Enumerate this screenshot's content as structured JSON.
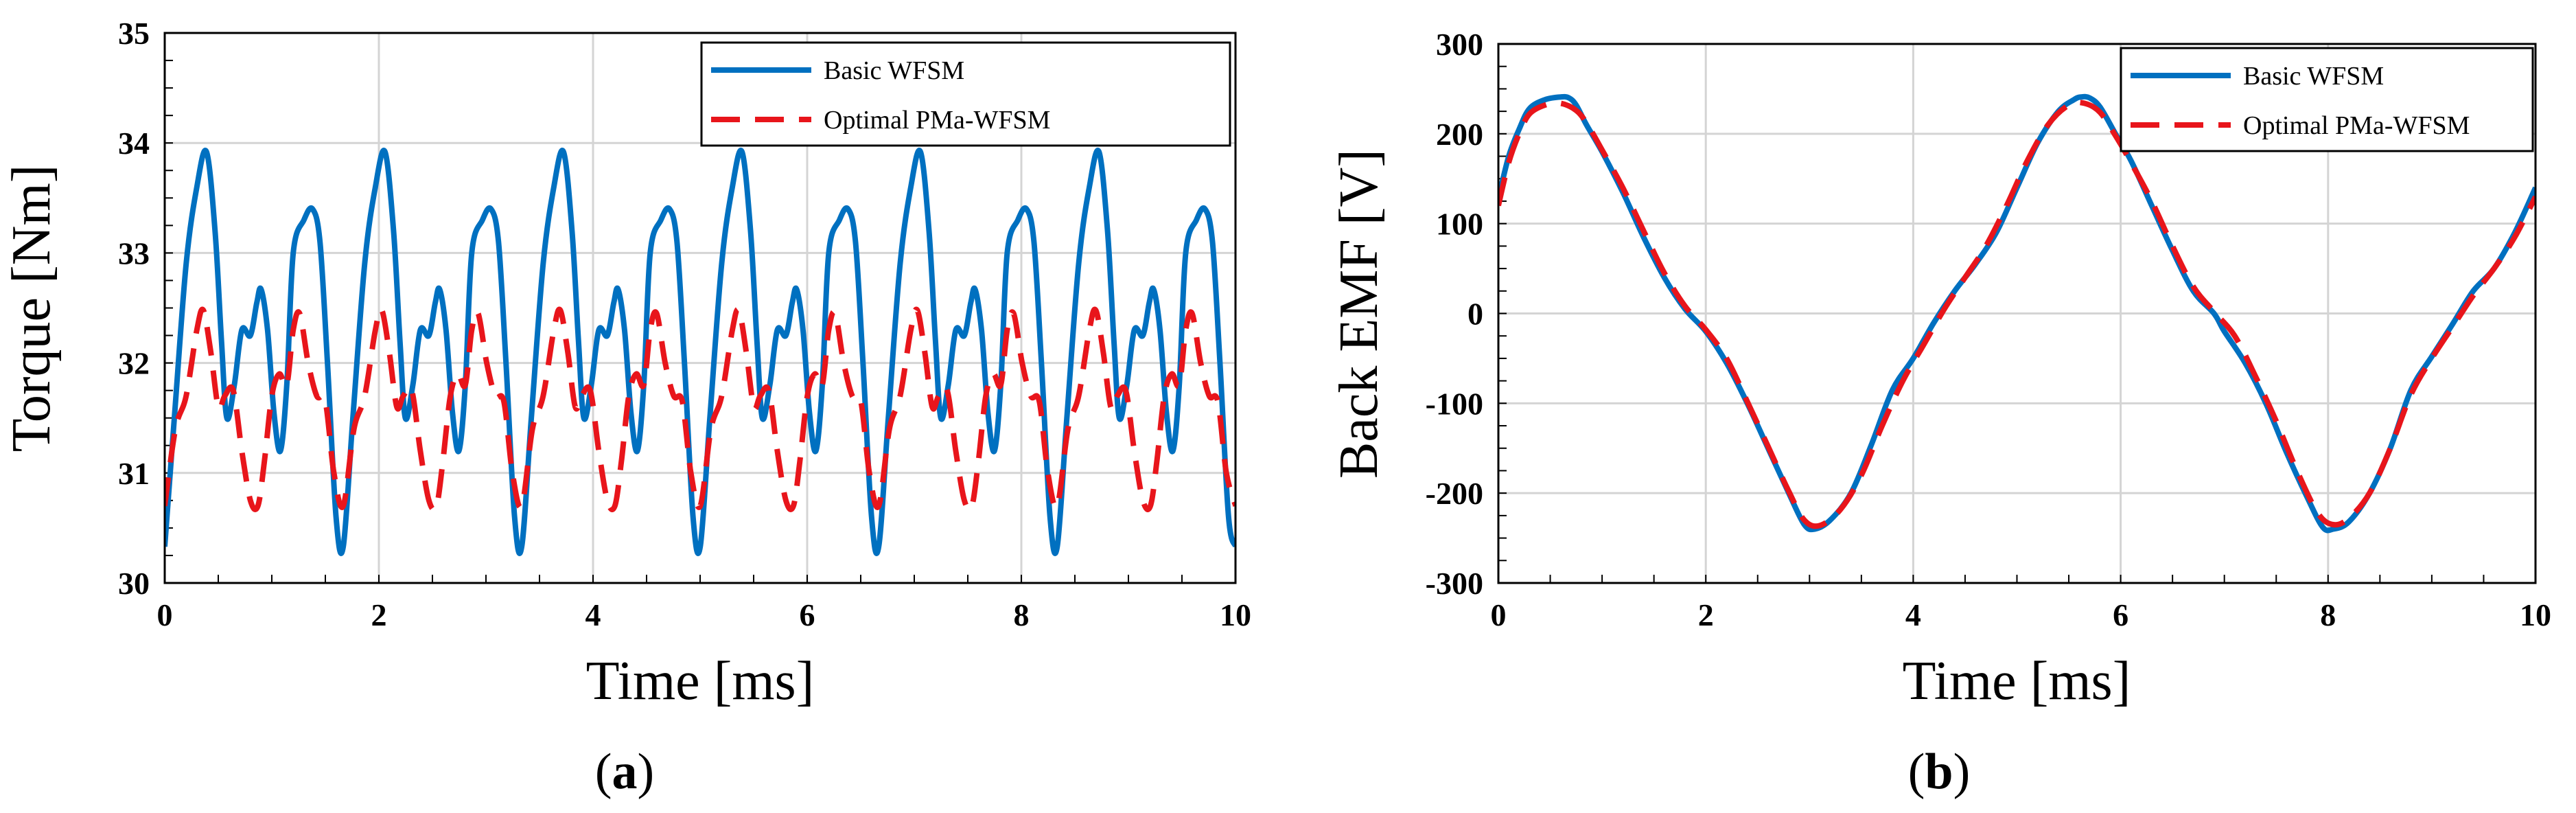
{
  "chart_data": [
    {
      "type": "line",
      "caption_letter": "a",
      "caption_open": "(",
      "caption_close": ")",
      "title": "",
      "xlabel": "Time [ms]",
      "ylabel": "Torque [Nm]",
      "xlim": [
        0,
        10
      ],
      "ylim": [
        30,
        35
      ],
      "xticks": [
        0,
        2,
        4,
        6,
        8,
        10
      ],
      "yticks": [
        30,
        31,
        32,
        33,
        34,
        35
      ],
      "grid": true,
      "legend": "top-right",
      "period": 1.667,
      "series": [
        {
          "name": "Basic WFSM",
          "color": "#0070C0",
          "dash": "solid",
          "x": [
            0,
            0.09,
            0.2,
            0.3,
            0.39,
            0.47,
            0.53,
            0.58,
            0.65,
            0.72,
            0.8,
            0.86,
            0.9,
            0.96,
            1.02,
            1.08,
            1.14,
            1.2,
            1.3,
            1.38,
            1.45,
            1.52,
            1.6,
            1.667
          ],
          "values": [
            30.33,
            31.5,
            32.9,
            33.6,
            33.92,
            33.2,
            32.2,
            31.5,
            31.8,
            32.3,
            32.25,
            32.55,
            32.67,
            32.3,
            31.55,
            31.2,
            31.8,
            33.0,
            33.3,
            33.4,
            33.1,
            32.0,
            30.6,
            30.33
          ]
        },
        {
          "name": "Optimal PMa-WFSM",
          "color": "#E8151B",
          "dash": "dashed",
          "x": [
            0,
            0.1,
            0.2,
            0.3,
            0.36,
            0.43,
            0.5,
            0.56,
            0.64,
            0.72,
            0.8,
            0.87,
            0.93,
            1.0,
            1.07,
            1.14,
            1.2,
            1.26,
            1.34,
            1.42,
            1.5,
            1.58,
            1.667
          ],
          "values": [
            30.7,
            31.4,
            31.7,
            32.3,
            32.48,
            32.1,
            31.6,
            31.7,
            31.75,
            31.2,
            30.75,
            30.7,
            31.1,
            31.7,
            31.9,
            31.8,
            32.3,
            32.45,
            32.0,
            31.7,
            31.65,
            31.0,
            30.7
          ]
        }
      ]
    },
    {
      "type": "line",
      "caption_letter": "b",
      "caption_open": "(",
      "caption_close": ")",
      "title": "",
      "xlabel": "Time [ms]",
      "ylabel": "Back EMF [V]",
      "xlim": [
        0,
        10
      ],
      "ylim": [
        -300,
        300
      ],
      "xticks": [
        0,
        2,
        4,
        6,
        8,
        10
      ],
      "yticks": [
        -300,
        -200,
        -100,
        0,
        100,
        200,
        300
      ],
      "grid": true,
      "legend": "top-right",
      "series": [
        {
          "name": "Basic WFSM",
          "color": "#0070C0",
          "dash": "solid",
          "x": [
            0,
            0.1,
            0.2,
            0.3,
            0.45,
            0.6,
            0.68,
            0.75,
            0.85,
            1.0,
            1.2,
            1.4,
            1.6,
            1.8,
            2.0,
            2.2,
            2.4,
            2.6,
            2.8,
            2.95,
            3.05,
            3.2,
            3.4,
            3.6,
            3.8,
            4.0,
            4.2,
            4.4,
            4.6,
            4.8,
            5.0,
            5.2,
            5.4,
            5.55,
            5.62,
            5.7,
            5.8,
            5.95,
            6.1,
            6.3,
            6.5,
            6.7,
            6.9,
            7.0,
            7.2,
            7.4,
            7.6,
            7.8,
            7.95,
            8.05,
            8.2,
            8.4,
            8.6,
            8.8,
            9.0,
            9.2,
            9.4,
            9.6,
            9.8,
            10.0
          ],
          "values": [
            128,
            175,
            205,
            228,
            238,
            241,
            240,
            232,
            210,
            180,
            135,
            85,
            40,
            5,
            -20,
            -55,
            -100,
            -150,
            -200,
            -235,
            -240,
            -230,
            -200,
            -145,
            -85,
            -50,
            -10,
            25,
            55,
            90,
            140,
            190,
            225,
            238,
            241,
            240,
            230,
            200,
            170,
            120,
            70,
            25,
            0,
            -20,
            -55,
            -100,
            -155,
            -205,
            -238,
            -240,
            -232,
            -200,
            -150,
            -85,
            -48,
            -12,
            25,
            50,
            90,
            140
          ]
        },
        {
          "name": "Optimal PMa-WFSM",
          "color": "#E8151B",
          "dash": "dashed",
          "x": [
            0,
            0.1,
            0.2,
            0.3,
            0.45,
            0.6,
            0.75,
            0.85,
            1.0,
            1.2,
            1.4,
            1.6,
            1.8,
            2.0,
            2.2,
            2.4,
            2.6,
            2.8,
            2.95,
            3.1,
            3.3,
            3.5,
            3.7,
            3.9,
            4.1,
            4.3,
            4.5,
            4.7,
            4.9,
            5.1,
            5.3,
            5.5,
            5.65,
            5.8,
            5.95,
            6.1,
            6.3,
            6.5,
            6.7,
            6.9,
            7.1,
            7.3,
            7.5,
            7.7,
            7.9,
            8.05,
            8.2,
            8.4,
            8.6,
            8.8,
            9.0,
            9.2,
            9.4,
            9.6,
            9.8,
            10.0
          ],
          "values": [
            120,
            168,
            200,
            222,
            232,
            234,
            226,
            212,
            182,
            140,
            92,
            45,
            8,
            -18,
            -50,
            -98,
            -148,
            -198,
            -230,
            -236,
            -218,
            -180,
            -125,
            -75,
            -35,
            5,
            40,
            75,
            120,
            170,
            210,
            232,
            234,
            224,
            198,
            168,
            125,
            75,
            30,
            2,
            -25,
            -70,
            -120,
            -175,
            -222,
            -235,
            -228,
            -200,
            -150,
            -90,
            -50,
            -15,
            20,
            50,
            85,
            130
          ]
        }
      ]
    }
  ]
}
